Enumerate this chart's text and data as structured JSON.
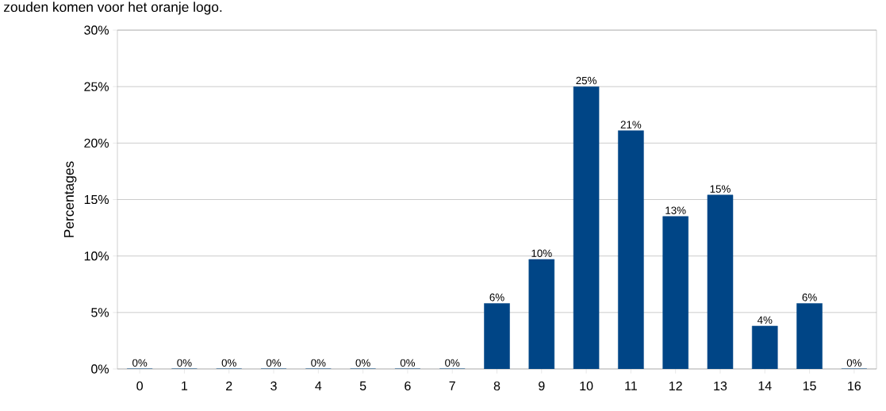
{
  "chart_data": {
    "type": "bar",
    "title": "zouden komen voor het oranje logo.",
    "ylabel": "Percentages",
    "categories": [
      "0",
      "1",
      "2",
      "3",
      "4",
      "5",
      "6",
      "7",
      "8",
      "9",
      "10",
      "11",
      "12",
      "13",
      "14",
      "15",
      "16"
    ],
    "values": [
      0,
      0,
      0,
      0,
      0,
      0,
      0,
      0,
      5.8,
      9.7,
      25,
      21.1,
      13.5,
      15.4,
      3.8,
      5.8,
      0
    ],
    "value_labels": [
      "0%",
      "0%",
      "0%",
      "0%",
      "0%",
      "0%",
      "0%",
      "0%",
      "6%",
      "10%",
      "25%",
      "21%",
      "13%",
      "15%",
      "4%",
      "6%",
      "0%"
    ],
    "color": "#004586",
    "ylim": [
      0,
      30
    ],
    "yticks": [
      {
        "value": 0,
        "label": "0%"
      },
      {
        "value": 5,
        "label": "5%"
      },
      {
        "value": 10,
        "label": "10%"
      },
      {
        "value": 15,
        "label": "15%"
      },
      {
        "value": 20,
        "label": "20%"
      },
      {
        "value": 25,
        "label": "25%"
      },
      {
        "value": 30,
        "label": "30%"
      }
    ],
    "grid": "y"
  }
}
